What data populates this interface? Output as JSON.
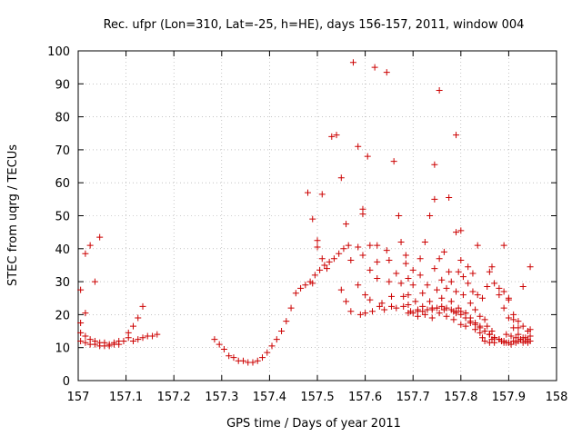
{
  "chart_data": {
    "type": "scatter",
    "title": "Rec. ufpr (Lon=310, Lat=-25, h=HE), days 156-157, 2011, window 004",
    "xlabel": "GPS time / Days of year 2011",
    "ylabel": "STEC from uqrg / TECUs",
    "xlim": [
      157,
      158
    ],
    "ylim": [
      0,
      100
    ],
    "xticks": [
      "157",
      "157.1",
      "157.2",
      "157.3",
      "157.4",
      "157.5",
      "157.6",
      "157.7",
      "157.8",
      "157.9",
      "158"
    ],
    "yticks": [
      "0",
      "10",
      "20",
      "30",
      "40",
      "50",
      "60",
      "70",
      "80",
      "90",
      "100"
    ],
    "grid": true,
    "marker": "+",
    "color": "#cc0000",
    "series": [
      {
        "name": "STEC",
        "points": [
          [
            157.005,
            27.5
          ],
          [
            157.005,
            17.5
          ],
          [
            157.005,
            14.5
          ],
          [
            157.005,
            12
          ],
          [
            157.015,
            20.5
          ],
          [
            157.015,
            38.5
          ],
          [
            157.025,
            41
          ],
          [
            157.035,
            30
          ],
          [
            157.045,
            43.5
          ],
          [
            157.015,
            13.5
          ],
          [
            157.025,
            12.5
          ],
          [
            157.035,
            12
          ],
          [
            157.045,
            11.5
          ],
          [
            157.055,
            11.5
          ],
          [
            157.065,
            11
          ],
          [
            157.075,
            11.5
          ],
          [
            157.085,
            12
          ],
          [
            157.015,
            11.5
          ],
          [
            157.025,
            11
          ],
          [
            157.035,
            11
          ],
          [
            157.045,
            10.5
          ],
          [
            157.055,
            10.5
          ],
          [
            157.065,
            10.5
          ],
          [
            157.075,
            11
          ],
          [
            157.085,
            11
          ],
          [
            157.095,
            12
          ],
          [
            157.105,
            13
          ],
          [
            157.115,
            12
          ],
          [
            157.125,
            12.5
          ],
          [
            157.135,
            13
          ],
          [
            157.145,
            13.5
          ],
          [
            157.155,
            13.5
          ],
          [
            157.165,
            14
          ],
          [
            157.105,
            14.5
          ],
          [
            157.115,
            16.5
          ],
          [
            157.125,
            19
          ],
          [
            157.135,
            22.5
          ],
          [
            157.285,
            12.5
          ],
          [
            157.295,
            11
          ],
          [
            157.305,
            9.5
          ],
          [
            157.315,
            7.5
          ],
          [
            157.325,
            7
          ],
          [
            157.335,
            6
          ],
          [
            157.345,
            6
          ],
          [
            157.355,
            5.5
          ],
          [
            157.365,
            5.5
          ],
          [
            157.375,
            6
          ],
          [
            157.385,
            7
          ],
          [
            157.395,
            8.5
          ],
          [
            157.405,
            10.5
          ],
          [
            157.415,
            12.5
          ],
          [
            157.425,
            15
          ],
          [
            157.435,
            18
          ],
          [
            157.445,
            22
          ],
          [
            157.455,
            26.5
          ],
          [
            157.465,
            28
          ],
          [
            157.475,
            29
          ],
          [
            157.485,
            30
          ],
          [
            157.495,
            32
          ],
          [
            157.505,
            33.5
          ],
          [
            157.515,
            35
          ],
          [
            157.525,
            36
          ],
          [
            157.535,
            37
          ],
          [
            157.545,
            38.5
          ],
          [
            157.555,
            40
          ],
          [
            157.565,
            41
          ],
          [
            157.48,
            57
          ],
          [
            157.49,
            49
          ],
          [
            157.49,
            29.5
          ],
          [
            157.5,
            42.5
          ],
          [
            157.5,
            40.5
          ],
          [
            157.51,
            56.5
          ],
          [
            157.51,
            37
          ],
          [
            157.52,
            34
          ],
          [
            157.53,
            74
          ],
          [
            157.54,
            74.5
          ],
          [
            157.55,
            61.5
          ],
          [
            157.55,
            27.5
          ],
          [
            157.56,
            47.5
          ],
          [
            157.56,
            24
          ],
          [
            157.57,
            36.5
          ],
          [
            157.57,
            21
          ],
          [
            157.575,
            96.5
          ],
          [
            157.585,
            71
          ],
          [
            157.585,
            40.5
          ],
          [
            157.585,
            29
          ],
          [
            157.59,
            20
          ],
          [
            157.595,
            52
          ],
          [
            157.595,
            50.5
          ],
          [
            157.595,
            38
          ],
          [
            157.6,
            26
          ],
          [
            157.6,
            20.5
          ],
          [
            157.605,
            68
          ],
          [
            157.61,
            41
          ],
          [
            157.61,
            33.5
          ],
          [
            157.61,
            24.5
          ],
          [
            157.615,
            21
          ],
          [
            157.62,
            95
          ],
          [
            157.625,
            41
          ],
          [
            157.625,
            36
          ],
          [
            157.625,
            31
          ],
          [
            157.63,
            22.5
          ],
          [
            157.635,
            23.5
          ],
          [
            157.64,
            21.5
          ],
          [
            157.645,
            93.5
          ],
          [
            157.645,
            39.5
          ],
          [
            157.65,
            36.5
          ],
          [
            157.65,
            30
          ],
          [
            157.655,
            25.5
          ],
          [
            157.655,
            22.5
          ],
          [
            157.66,
            66.5
          ],
          [
            157.665,
            32.5
          ],
          [
            157.665,
            22
          ],
          [
            157.67,
            50
          ],
          [
            157.675,
            42
          ],
          [
            157.675,
            29.5
          ],
          [
            157.68,
            25.5
          ],
          [
            157.68,
            22.5
          ],
          [
            157.685,
            38
          ],
          [
            157.685,
            35.5
          ],
          [
            157.69,
            31
          ],
          [
            157.69,
            26
          ],
          [
            157.69,
            23
          ],
          [
            157.695,
            21
          ],
          [
            157.7,
            33.5
          ],
          [
            157.7,
            29
          ],
          [
            157.705,
            24
          ],
          [
            157.71,
            21.5
          ],
          [
            157.71,
            19.5
          ],
          [
            157.715,
            37
          ],
          [
            157.715,
            32
          ],
          [
            157.72,
            26.5
          ],
          [
            157.72,
            22.5
          ],
          [
            157.725,
            42
          ],
          [
            157.725,
            20
          ],
          [
            157.73,
            29
          ],
          [
            157.735,
            50
          ],
          [
            157.735,
            24
          ],
          [
            157.74,
            21.5
          ],
          [
            157.74,
            19
          ],
          [
            157.745,
            65.5
          ],
          [
            157.745,
            55
          ],
          [
            157.745,
            34
          ],
          [
            157.75,
            27.5
          ],
          [
            157.75,
            22
          ],
          [
            157.755,
            88
          ],
          [
            157.755,
            37
          ],
          [
            157.755,
            20.5
          ],
          [
            157.76,
            30.5
          ],
          [
            157.76,
            25
          ],
          [
            157.765,
            39
          ],
          [
            157.765,
            21.5
          ],
          [
            157.77,
            28
          ],
          [
            157.77,
            19.5
          ],
          [
            157.775,
            55.5
          ],
          [
            157.775,
            33
          ],
          [
            157.78,
            30
          ],
          [
            157.78,
            24
          ],
          [
            157.785,
            21
          ],
          [
            157.785,
            18.5
          ],
          [
            157.79,
            74.5
          ],
          [
            157.79,
            45
          ],
          [
            157.79,
            27
          ],
          [
            157.795,
            33
          ],
          [
            157.795,
            22
          ],
          [
            157.8,
            45.5
          ],
          [
            157.8,
            36.5
          ],
          [
            157.8,
            17
          ],
          [
            157.805,
            31.5
          ],
          [
            157.805,
            26
          ],
          [
            157.81,
            20.5
          ],
          [
            157.81,
            16.5
          ],
          [
            157.815,
            34.5
          ],
          [
            157.815,
            29.5
          ],
          [
            157.82,
            23.5
          ],
          [
            157.82,
            17.5
          ],
          [
            157.825,
            32.5
          ],
          [
            157.825,
            27
          ],
          [
            157.83,
            21.5
          ],
          [
            157.83,
            15.5
          ],
          [
            157.835,
            41
          ],
          [
            157.835,
            26
          ],
          [
            157.84,
            19.5
          ],
          [
            157.84,
            14.5
          ],
          [
            157.845,
            25
          ],
          [
            157.845,
            13
          ],
          [
            157.85,
            18.5
          ],
          [
            157.85,
            12
          ],
          [
            157.855,
            28.5
          ],
          [
            157.855,
            16.5
          ],
          [
            157.86,
            14
          ],
          [
            157.86,
            11.5
          ],
          [
            157.865,
            34.5
          ],
          [
            157.865,
            15
          ],
          [
            157.865,
            12.5
          ],
          [
            157.87,
            13
          ],
          [
            157.87,
            11.5
          ],
          [
            157.69,
            20.5
          ],
          [
            157.7,
            20.5
          ],
          [
            157.71,
            21
          ],
          [
            157.72,
            21
          ],
          [
            157.73,
            21.5
          ],
          [
            157.74,
            22
          ],
          [
            157.75,
            22
          ],
          [
            157.76,
            22.5
          ],
          [
            157.77,
            22
          ],
          [
            157.78,
            21.5
          ],
          [
            157.79,
            21
          ],
          [
            157.8,
            20
          ],
          [
            157.81,
            19
          ],
          [
            157.82,
            18
          ],
          [
            157.83,
            17
          ],
          [
            157.84,
            16
          ],
          [
            157.85,
            15
          ],
          [
            157.86,
            14
          ],
          [
            157.87,
            13
          ],
          [
            157.88,
            12.5
          ],
          [
            157.89,
            12
          ],
          [
            157.79,
            20.5
          ],
          [
            157.8,
            21
          ],
          [
            157.81,
            20.5
          ],
          [
            157.82,
            19
          ],
          [
            157.83,
            17.5
          ],
          [
            157.84,
            16.5
          ],
          [
            157.85,
            15
          ],
          [
            157.86,
            14
          ],
          [
            157.87,
            13
          ],
          [
            157.88,
            12.5
          ],
          [
            157.89,
            11.5
          ],
          [
            157.9,
            11.5
          ],
          [
            157.91,
            12
          ],
          [
            157.92,
            12
          ],
          [
            157.93,
            11.5
          ],
          [
            157.94,
            11.5
          ],
          [
            157.86,
            33
          ],
          [
            157.87,
            29.5
          ],
          [
            157.88,
            26
          ],
          [
            157.89,
            22
          ],
          [
            157.9,
            19
          ],
          [
            157.91,
            16
          ],
          [
            157.92,
            14
          ],
          [
            157.93,
            13
          ],
          [
            157.94,
            12.5
          ],
          [
            157.88,
            28
          ],
          [
            157.89,
            27
          ],
          [
            157.9,
            24.5
          ],
          [
            157.91,
            20
          ],
          [
            157.92,
            18
          ],
          [
            157.93,
            16.5
          ],
          [
            157.94,
            15
          ],
          [
            157.89,
            41
          ],
          [
            157.9,
            25
          ],
          [
            157.91,
            18.5
          ],
          [
            157.92,
            16
          ],
          [
            157.93,
            28.5
          ],
          [
            157.945,
            34.5
          ],
          [
            157.895,
            14
          ],
          [
            157.905,
            13.5
          ],
          [
            157.915,
            13
          ],
          [
            157.925,
            12.5
          ],
          [
            157.935,
            12
          ],
          [
            157.945,
            12
          ],
          [
            157.945,
            13.5
          ],
          [
            157.885,
            12
          ],
          [
            157.895,
            11.5
          ],
          [
            157.905,
            11
          ],
          [
            157.915,
            11.5
          ],
          [
            157.925,
            12.5
          ],
          [
            157.935,
            13
          ],
          [
            157.945,
            15.5
          ]
        ]
      }
    ]
  }
}
